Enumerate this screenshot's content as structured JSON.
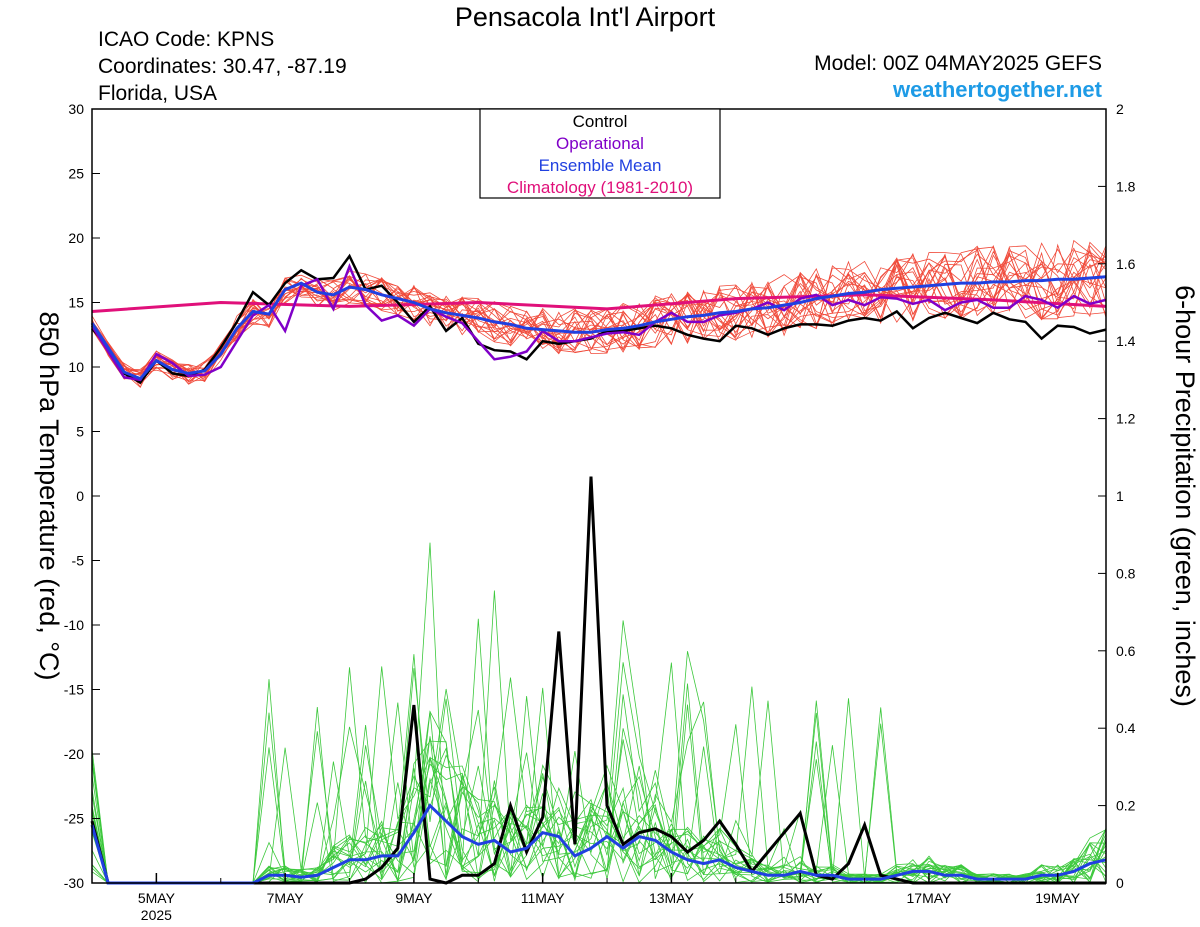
{
  "header": {
    "title": "Pensacola Int'l Airport",
    "icao": "ICAO Code: KPNS",
    "coordinates": "Coordinates: 30.47, -87.19",
    "region": "Florida, USA",
    "model": "Model: 00Z 04MAY2025 GEFS",
    "site": "weathertogether.net"
  },
  "chart_data": {
    "type": "line",
    "title": "Pensacola Int'l Airport",
    "ylabel": "850 hPa Temperature (red, °C)",
    "y2label": "6-hour Precipitation (green, inches)",
    "ylim": [
      -30,
      30
    ],
    "y2lim": [
      0,
      2
    ],
    "yticks": [
      -30,
      -25,
      -20,
      -15,
      -10,
      -5,
      0,
      5,
      10,
      15,
      20,
      25,
      30
    ],
    "y2ticks": [
      0,
      0.2,
      0.4,
      0.6,
      0.8,
      1,
      1.2,
      1.4,
      1.6,
      1.8,
      2
    ],
    "x_unit": "hours since 00Z 04MAY2025",
    "xlim": [
      0,
      378
    ],
    "xticks": [
      {
        "x": 24,
        "label": "5MAY",
        "sub": "2025"
      },
      {
        "x": 72,
        "label": "7MAY",
        "sub": ""
      },
      {
        "x": 120,
        "label": "9MAY",
        "sub": ""
      },
      {
        "x": 168,
        "label": "11MAY",
        "sub": ""
      },
      {
        "x": 216,
        "label": "13MAY",
        "sub": ""
      },
      {
        "x": 264,
        "label": "15MAY",
        "sub": ""
      },
      {
        "x": 312,
        "label": "17MAY",
        "sub": ""
      },
      {
        "x": 360,
        "label": "19MAY",
        "sub": ""
      }
    ],
    "legend": {
      "position": "top-center",
      "entries": [
        {
          "label": "Control",
          "color": "#000000"
        },
        {
          "label": "Operational",
          "color": "#8000c8"
        },
        {
          "label": "Ensemble Mean",
          "color": "#2040e0"
        },
        {
          "label": "Climatology (1981-2010)",
          "color": "#e0107a"
        }
      ]
    },
    "colors": {
      "members_temp": "#f04a3a",
      "members_precip": "#3cc83c",
      "control": "#000000",
      "operational": "#8000c8",
      "mean": "#2040e0",
      "climatology": "#e0107a"
    },
    "temperature": {
      "climatology": [
        [
          0,
          14.3
        ],
        [
          48,
          15.0
        ],
        [
          96,
          14.7
        ],
        [
          144,
          15.0
        ],
        [
          192,
          14.5
        ],
        [
          240,
          15.3
        ],
        [
          288,
          15.6
        ],
        [
          336,
          15.2
        ],
        [
          378,
          14.7
        ]
      ],
      "control": [
        [
          0,
          13.0
        ],
        [
          6,
          11.5
        ],
        [
          12,
          9.5
        ],
        [
          18,
          8.8
        ],
        [
          24,
          10.5
        ],
        [
          30,
          9.5
        ],
        [
          36,
          9.3
        ],
        [
          42,
          9.8
        ],
        [
          48,
          11.5
        ],
        [
          54,
          13.5
        ],
        [
          60,
          15.8
        ],
        [
          66,
          14.8
        ],
        [
          72,
          16.5
        ],
        [
          78,
          17.5
        ],
        [
          84,
          16.8
        ],
        [
          90,
          16.9
        ],
        [
          96,
          18.6
        ],
        [
          102,
          16.0
        ],
        [
          108,
          16.3
        ],
        [
          114,
          15.0
        ],
        [
          120,
          13.5
        ],
        [
          126,
          14.7
        ],
        [
          132,
          12.8
        ],
        [
          138,
          13.8
        ],
        [
          144,
          11.8
        ],
        [
          150,
          11.3
        ],
        [
          156,
          11.2
        ],
        [
          162,
          10.6
        ],
        [
          168,
          12.0
        ],
        [
          174,
          11.8
        ],
        [
          180,
          12.0
        ],
        [
          186,
          12.2
        ],
        [
          192,
          12.8
        ],
        [
          198,
          12.8
        ],
        [
          204,
          13.0
        ],
        [
          210,
          13.2
        ],
        [
          216,
          13.0
        ],
        [
          222,
          12.5
        ],
        [
          228,
          12.2
        ],
        [
          234,
          12.0
        ],
        [
          240,
          13.2
        ],
        [
          246,
          13.0
        ],
        [
          252,
          12.5
        ],
        [
          258,
          13.0
        ],
        [
          264,
          13.3
        ],
        [
          270,
          13.3
        ],
        [
          276,
          13.2
        ],
        [
          282,
          13.6
        ],
        [
          288,
          13.8
        ],
        [
          294,
          13.6
        ],
        [
          300,
          14.3
        ],
        [
          306,
          13.0
        ],
        [
          312,
          13.8
        ],
        [
          318,
          14.2
        ],
        [
          324,
          13.8
        ],
        [
          330,
          13.4
        ],
        [
          336,
          14.2
        ],
        [
          342,
          13.7
        ],
        [
          348,
          13.5
        ],
        [
          354,
          12.2
        ],
        [
          360,
          13.2
        ],
        [
          366,
          13.1
        ],
        [
          372,
          12.6
        ],
        [
          378,
          12.9
        ]
      ],
      "operational": [
        [
          0,
          13.2
        ],
        [
          6,
          11.2
        ],
        [
          12,
          9.2
        ],
        [
          18,
          9.0
        ],
        [
          24,
          11.0
        ],
        [
          30,
          10.3
        ],
        [
          36,
          9.3
        ],
        [
          42,
          9.4
        ],
        [
          48,
          10.0
        ],
        [
          54,
          12.0
        ],
        [
          60,
          14.0
        ],
        [
          66,
          14.8
        ],
        [
          72,
          12.8
        ],
        [
          78,
          16.3
        ],
        [
          84,
          16.8
        ],
        [
          90,
          14.5
        ],
        [
          96,
          17.8
        ],
        [
          102,
          14.8
        ],
        [
          108,
          13.6
        ],
        [
          114,
          14.0
        ],
        [
          120,
          13.2
        ],
        [
          126,
          14.5
        ],
        [
          132,
          13.9
        ],
        [
          138,
          13.4
        ],
        [
          144,
          12.0
        ],
        [
          150,
          10.6
        ],
        [
          156,
          10.8
        ],
        [
          162,
          11.2
        ],
        [
          168,
          12.8
        ],
        [
          174,
          12.0
        ],
        [
          180,
          12.0
        ],
        [
          186,
          12.3
        ],
        [
          192,
          12.6
        ],
        [
          198,
          12.7
        ],
        [
          204,
          12.5
        ],
        [
          210,
          13.5
        ],
        [
          216,
          14.2
        ],
        [
          222,
          13.5
        ],
        [
          228,
          13.5
        ],
        [
          234,
          14.0
        ],
        [
          240,
          14.2
        ],
        [
          246,
          14.5
        ],
        [
          252,
          15.0
        ],
        [
          258,
          14.4
        ],
        [
          264,
          15.3
        ],
        [
          270,
          15.6
        ],
        [
          276,
          14.8
        ],
        [
          282,
          15.2
        ],
        [
          288,
          14.8
        ],
        [
          294,
          15.4
        ],
        [
          300,
          15.3
        ],
        [
          306,
          14.9
        ],
        [
          312,
          15.2
        ],
        [
          318,
          14.4
        ],
        [
          324,
          15.0
        ],
        [
          330,
          15.2
        ],
        [
          336,
          14.6
        ],
        [
          342,
          14.6
        ],
        [
          348,
          15.5
        ],
        [
          354,
          15.2
        ],
        [
          360,
          14.6
        ],
        [
          366,
          15.5
        ],
        [
          372,
          14.9
        ],
        [
          378,
          15.2
        ]
      ],
      "mean": [
        [
          0,
          13.4
        ],
        [
          6,
          11.5
        ],
        [
          12,
          9.6
        ],
        [
          18,
          9.1
        ],
        [
          24,
          10.5
        ],
        [
          30,
          9.8
        ],
        [
          36,
          9.5
        ],
        [
          42,
          9.7
        ],
        [
          48,
          11.0
        ],
        [
          54,
          13.0
        ],
        [
          60,
          14.3
        ],
        [
          66,
          14.1
        ],
        [
          72,
          16.0
        ],
        [
          78,
          16.5
        ],
        [
          84,
          15.8
        ],
        [
          90,
          15.6
        ],
        [
          96,
          16.2
        ],
        [
          102,
          16.0
        ],
        [
          108,
          15.6
        ],
        [
          114,
          15.3
        ],
        [
          120,
          15.0
        ],
        [
          126,
          14.5
        ],
        [
          132,
          14.2
        ],
        [
          138,
          14.0
        ],
        [
          144,
          13.8
        ],
        [
          150,
          13.5
        ],
        [
          156,
          13.3
        ],
        [
          162,
          13.0
        ],
        [
          168,
          12.9
        ],
        [
          174,
          12.8
        ],
        [
          180,
          12.7
        ],
        [
          186,
          12.7
        ],
        [
          192,
          12.9
        ],
        [
          198,
          13.0
        ],
        [
          204,
          13.2
        ],
        [
          210,
          13.5
        ],
        [
          216,
          13.7
        ],
        [
          222,
          13.9
        ],
        [
          228,
          14.0
        ],
        [
          234,
          14.2
        ],
        [
          240,
          14.3
        ],
        [
          246,
          14.5
        ],
        [
          252,
          14.6
        ],
        [
          258,
          14.8
        ],
        [
          264,
          15.0
        ],
        [
          270,
          15.3
        ],
        [
          276,
          15.5
        ],
        [
          282,
          15.7
        ],
        [
          288,
          15.8
        ],
        [
          294,
          16.0
        ],
        [
          300,
          16.1
        ],
        [
          306,
          16.2
        ],
        [
          312,
          16.3
        ],
        [
          318,
          16.4
        ],
        [
          324,
          16.5
        ],
        [
          330,
          16.5
        ],
        [
          336,
          16.6
        ],
        [
          342,
          16.6
        ],
        [
          348,
          16.7
        ],
        [
          354,
          16.7
        ],
        [
          360,
          16.8
        ],
        [
          366,
          16.8
        ],
        [
          372,
          16.9
        ],
        [
          378,
          17.0
        ]
      ]
    },
    "precipitation": {
      "control": [
        [
          0,
          0.16
        ],
        [
          6,
          0
        ],
        [
          12,
          0
        ],
        [
          18,
          0
        ],
        [
          24,
          0
        ],
        [
          30,
          0
        ],
        [
          36,
          0
        ],
        [
          42,
          0
        ],
        [
          48,
          0
        ],
        [
          54,
          0
        ],
        [
          60,
          0
        ],
        [
          66,
          0
        ],
        [
          72,
          0
        ],
        [
          78,
          0
        ],
        [
          84,
          0
        ],
        [
          90,
          0
        ],
        [
          96,
          0
        ],
        [
          102,
          0.01
        ],
        [
          108,
          0.04
        ],
        [
          114,
          0.09
        ],
        [
          120,
          0.46
        ],
        [
          126,
          0.01
        ],
        [
          132,
          0
        ],
        [
          138,
          0.02
        ],
        [
          144,
          0.02
        ],
        [
          150,
          0.05
        ],
        [
          156,
          0.2
        ],
        [
          162,
          0.08
        ],
        [
          168,
          0.17
        ],
        [
          174,
          0.65
        ],
        [
          180,
          0.1
        ],
        [
          186,
          1.05
        ],
        [
          192,
          0.2
        ],
        [
          198,
          0.1
        ],
        [
          204,
          0.13
        ],
        [
          210,
          0.14
        ],
        [
          216,
          0.12
        ],
        [
          222,
          0.08
        ],
        [
          228,
          0.11
        ],
        [
          234,
          0.16
        ],
        [
          240,
          0.1
        ],
        [
          246,
          0.03
        ],
        [
          252,
          0.08
        ],
        [
          258,
          0.13
        ],
        [
          264,
          0.18
        ],
        [
          270,
          0.02
        ],
        [
          276,
          0.01
        ],
        [
          282,
          0.05
        ],
        [
          288,
          0.15
        ],
        [
          294,
          0.02
        ],
        [
          300,
          0.01
        ],
        [
          306,
          0
        ],
        [
          312,
          0
        ],
        [
          318,
          0
        ],
        [
          324,
          0
        ],
        [
          330,
          0
        ],
        [
          336,
          0
        ],
        [
          342,
          0
        ],
        [
          348,
          0
        ],
        [
          354,
          0
        ],
        [
          360,
          0
        ],
        [
          366,
          0
        ],
        [
          372,
          0
        ],
        [
          378,
          0
        ]
      ],
      "mean": [
        [
          0,
          0.15
        ],
        [
          6,
          0
        ],
        [
          12,
          0
        ],
        [
          18,
          0
        ],
        [
          24,
          0
        ],
        [
          30,
          0
        ],
        [
          36,
          0
        ],
        [
          42,
          0
        ],
        [
          48,
          0
        ],
        [
          54,
          0
        ],
        [
          60,
          0
        ],
        [
          66,
          0.02
        ],
        [
          72,
          0.02
        ],
        [
          78,
          0.015
        ],
        [
          84,
          0.02
        ],
        [
          90,
          0.04
        ],
        [
          96,
          0.06
        ],
        [
          102,
          0.06
        ],
        [
          108,
          0.07
        ],
        [
          114,
          0.07
        ],
        [
          120,
          0.13
        ],
        [
          126,
          0.2
        ],
        [
          132,
          0.16
        ],
        [
          138,
          0.12
        ],
        [
          144,
          0.1
        ],
        [
          150,
          0.11
        ],
        [
          156,
          0.08
        ],
        [
          162,
          0.09
        ],
        [
          168,
          0.13
        ],
        [
          174,
          0.12
        ],
        [
          180,
          0.07
        ],
        [
          186,
          0.09
        ],
        [
          192,
          0.12
        ],
        [
          198,
          0.09
        ],
        [
          204,
          0.12
        ],
        [
          210,
          0.11
        ],
        [
          216,
          0.08
        ],
        [
          222,
          0.06
        ],
        [
          228,
          0.05
        ],
        [
          234,
          0.06
        ],
        [
          240,
          0.04
        ],
        [
          246,
          0.03
        ],
        [
          252,
          0.02
        ],
        [
          258,
          0.02
        ],
        [
          264,
          0.03
        ],
        [
          270,
          0.02
        ],
        [
          276,
          0.02
        ],
        [
          282,
          0.01
        ],
        [
          288,
          0.01
        ],
        [
          294,
          0.01
        ],
        [
          300,
          0.02
        ],
        [
          306,
          0.03
        ],
        [
          312,
          0.03
        ],
        [
          318,
          0.02
        ],
        [
          324,
          0.02
        ],
        [
          330,
          0.01
        ],
        [
          336,
          0.01
        ],
        [
          342,
          0.01
        ],
        [
          348,
          0.01
        ],
        [
          354,
          0.02
        ],
        [
          360,
          0.02
        ],
        [
          366,
          0.03
        ],
        [
          372,
          0.05
        ],
        [
          378,
          0.06
        ]
      ]
    }
  }
}
